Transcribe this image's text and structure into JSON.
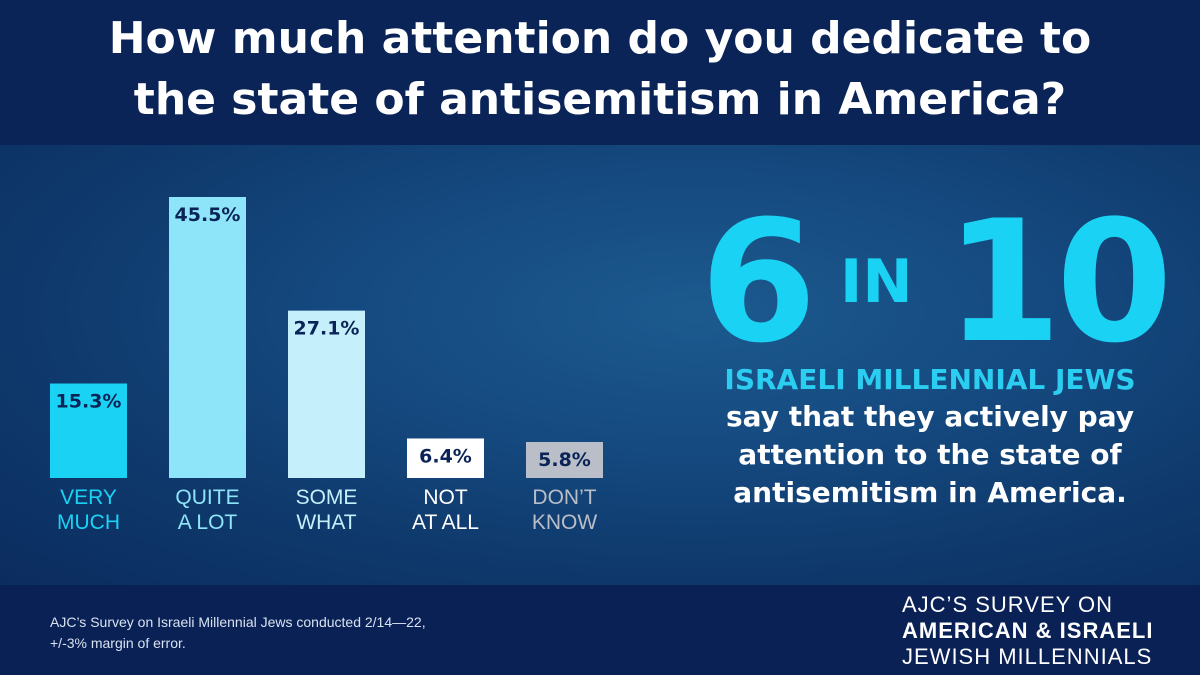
{
  "title": {
    "line1": "How much attention do you dedicate to",
    "line2": "the state of antisemitism in America?"
  },
  "chart_data": {
    "type": "bar",
    "categories": [
      [
        "VERY",
        "MUCH"
      ],
      [
        "QUITE",
        "A LOT"
      ],
      [
        "SOME",
        "WHAT"
      ],
      [
        "NOT",
        "AT ALL"
      ],
      [
        "DON’T",
        "KNOW"
      ]
    ],
    "values": [
      15.3,
      45.5,
      27.1,
      6.4,
      5.8
    ],
    "value_labels": [
      "15.3%",
      "45.5%",
      "27.1%",
      "6.4%",
      "5.8%"
    ],
    "colors": [
      "#1ad3f4",
      "#8ee5f9",
      "#c5effb",
      "#ffffff",
      "#b9bec8"
    ],
    "label_colors": [
      "#1ad3f4",
      "#8ee5f9",
      "#c5effb",
      "#ffffff",
      "#b9bec8"
    ],
    "ylim": [
      0,
      45.5
    ],
    "xlabel": "",
    "ylabel": ""
  },
  "callout": {
    "number": "6",
    "connector": "IN",
    "total": "10",
    "lead": "ISRAELI MILLENNIAL JEWS",
    "lines": [
      "say that they actively pay",
      "attention to the state of",
      "antisemitism in America."
    ]
  },
  "footer": {
    "note_line1": "AJC’s Survey on Israeli Millennial Jews conducted 2/14—22,",
    "note_line2": "+/-3% margin of error.",
    "brand_line1": "AJC’S SURVEY ON",
    "brand_line2": "AMERICAN & ISRAELI",
    "brand_line3": "JEWISH MILLENNIALS"
  }
}
